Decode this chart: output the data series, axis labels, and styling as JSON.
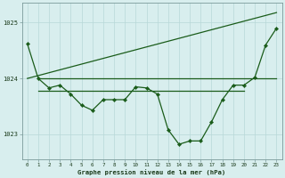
{
  "background_color": "#d8eeee",
  "grid_color": "#b8d8d8",
  "line_color": "#1a5c1a",
  "xlabel": "Graphe pression niveau de la mer (hPa)",
  "ytick_labels": [
    "1023",
    "1024",
    "1025"
  ],
  "ytick_values": [
    1023.0,
    1024.0,
    1025.0
  ],
  "xlim": [
    -0.5,
    23.5
  ],
  "ylim": [
    1022.55,
    1025.35
  ],
  "main_series": {
    "x": [
      0,
      1,
      2,
      3,
      4,
      5,
      6,
      7,
      8,
      9,
      10,
      11,
      12,
      13,
      14,
      15,
      16,
      17,
      18,
      19,
      20,
      21,
      22,
      23
    ],
    "y": [
      1024.62,
      1024.0,
      1023.83,
      1023.88,
      1023.72,
      1023.52,
      1023.43,
      1023.62,
      1023.62,
      1023.62,
      1023.85,
      1023.83,
      1023.72,
      1023.08,
      1022.82,
      1022.88,
      1022.88,
      1023.22,
      1023.62,
      1023.88,
      1023.88,
      1024.02,
      1024.6,
      1024.9
    ]
  },
  "diagonal_line": {
    "x": [
      0,
      23
    ],
    "y": [
      1024.0,
      1025.18
    ]
  },
  "flat_line1": {
    "x": [
      1,
      23
    ],
    "y": [
      1024.0,
      1024.0
    ]
  },
  "flat_line2": {
    "x": [
      1,
      20
    ],
    "y": [
      1023.78,
      1023.78
    ]
  }
}
